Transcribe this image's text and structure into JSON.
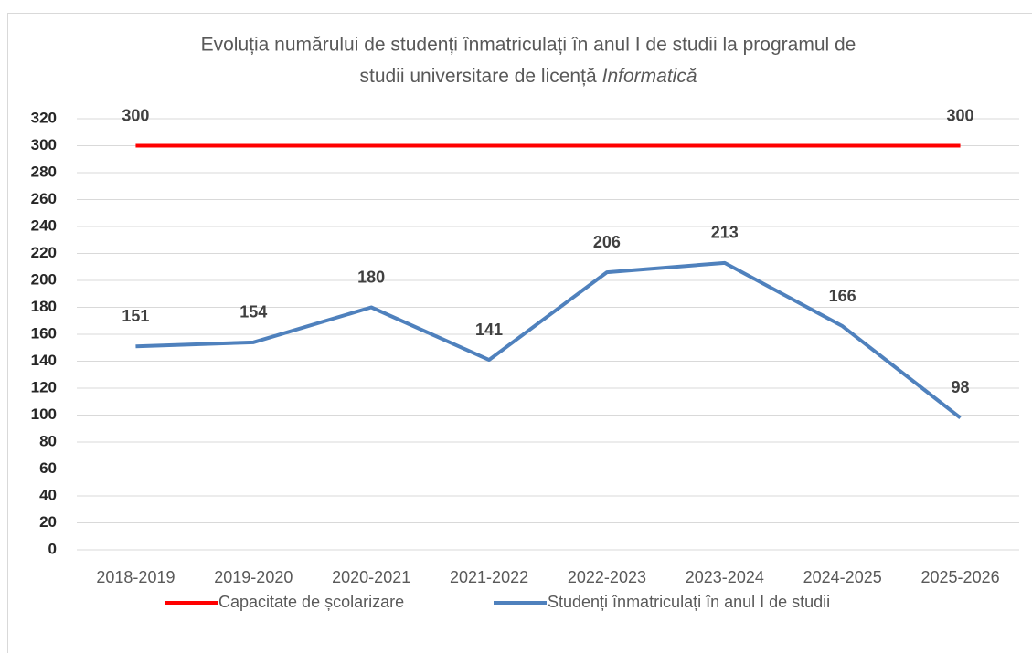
{
  "chart_data": {
    "type": "line",
    "title": [
      "Evoluția numărului de studenți înmatriculați în anul I de studii la programul de",
      "studii universitare de licență",
      "Informatică"
    ],
    "categories": [
      "2018-2019",
      "2019-2020",
      "2020-2021",
      "2021-2022",
      "2022-2023",
      "2023-2024",
      "2024-2025",
      "2025-2026"
    ],
    "series": [
      {
        "name": "Capacitate de școlarizare",
        "color": "#ff0000",
        "values": [
          300,
          300,
          300,
          300,
          300,
          300,
          300,
          300
        ],
        "value_labels": [
          "300",
          null,
          null,
          null,
          null,
          null,
          null,
          "300"
        ]
      },
      {
        "name": "Studenți înmatriculați în anul I de studii",
        "color": "#4f81bd",
        "values": [
          151,
          154,
          180,
          141,
          206,
          213,
          166,
          98
        ]
      }
    ],
    "ylim": [
      0,
      320
    ],
    "yticks": [
      0,
      20,
      40,
      60,
      80,
      100,
      120,
      140,
      160,
      180,
      200,
      220,
      240,
      260,
      280,
      300,
      320
    ],
    "grid": true,
    "legend": "bottom"
  }
}
